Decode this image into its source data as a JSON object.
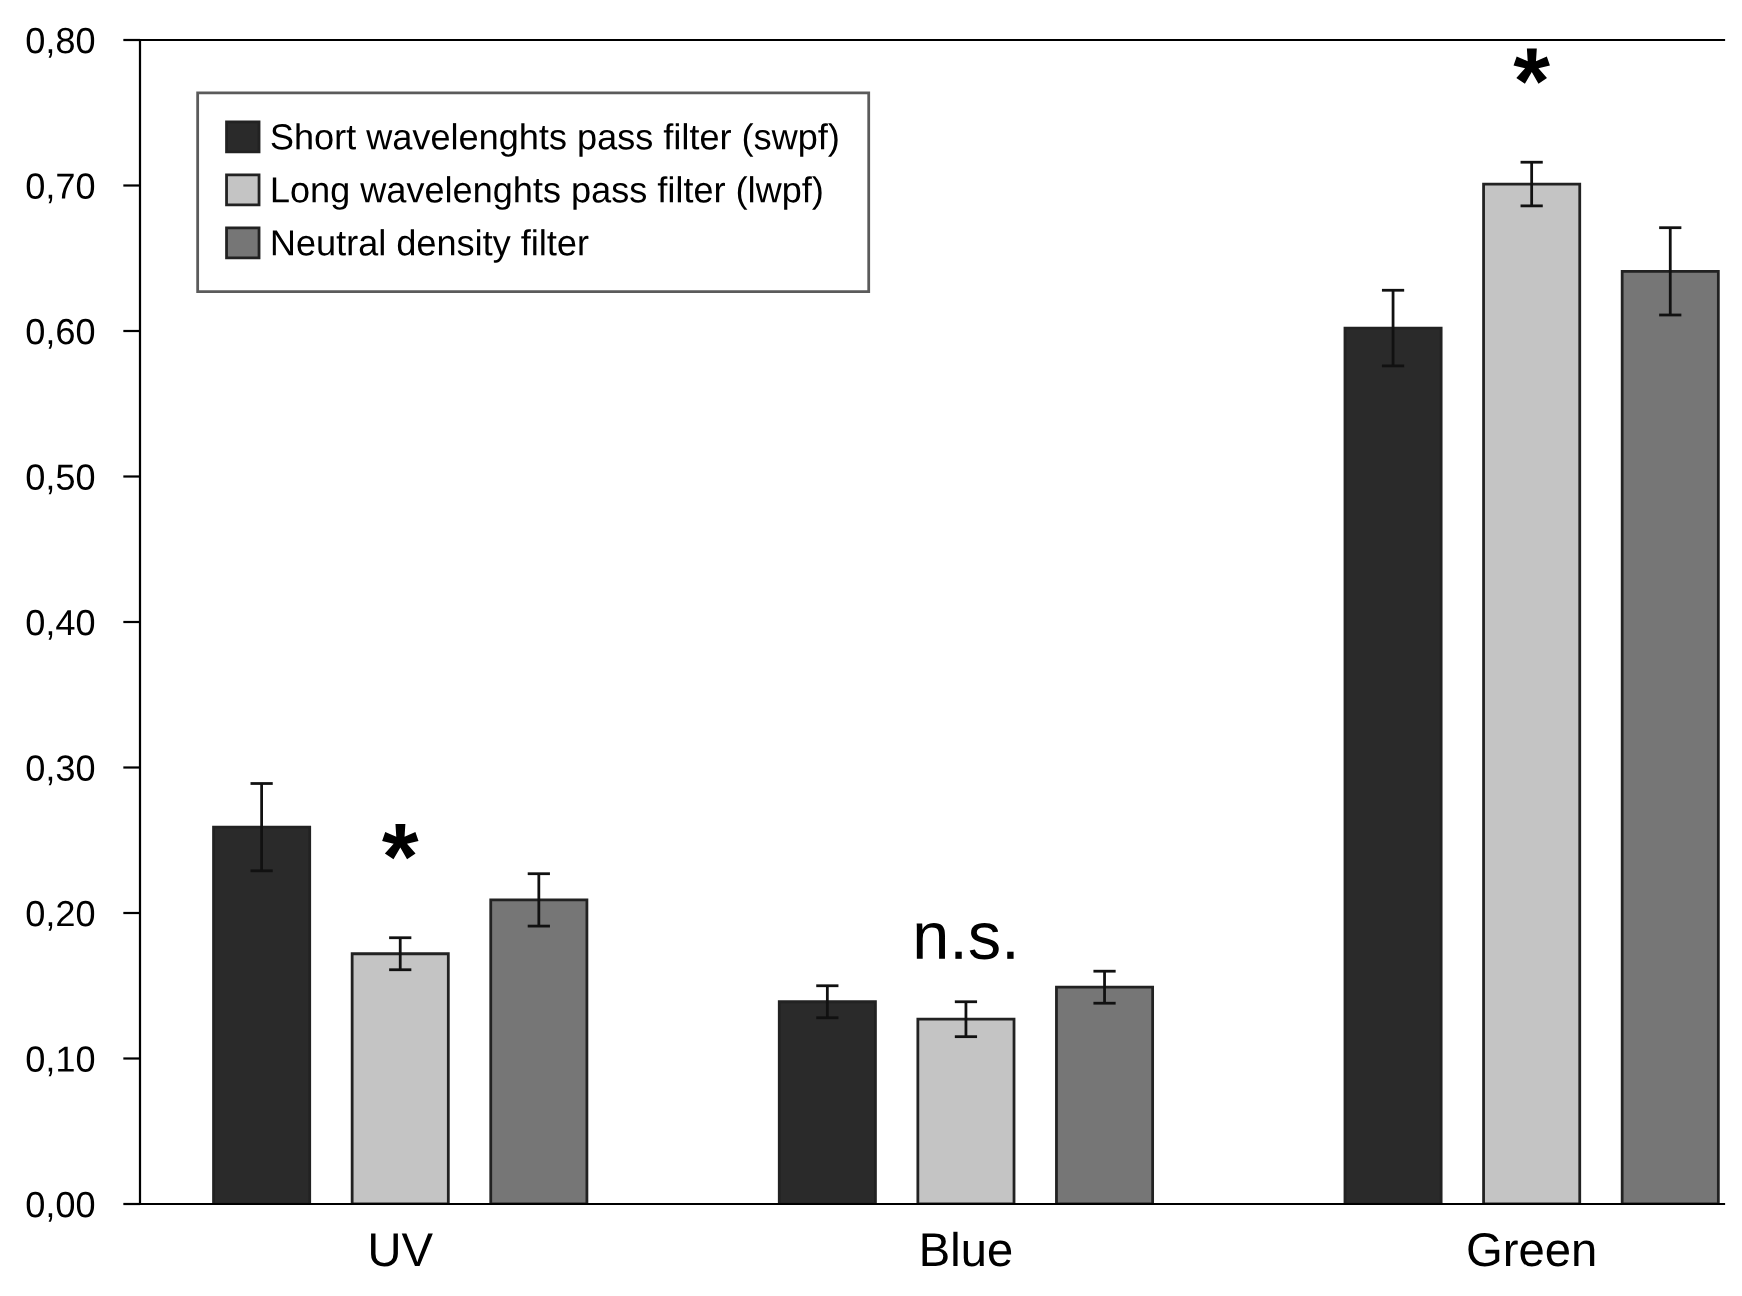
{
  "chart_data": {
    "type": "bar",
    "categories": [
      "UV",
      "Blue",
      "Green"
    ],
    "series": [
      {
        "name": "Short wavelenghts pass filter (swpf)",
        "color": "#2a2a2a",
        "values": [
          0.259,
          0.139,
          0.602
        ],
        "errors": [
          0.03,
          0.011,
          0.026
        ]
      },
      {
        "name": "Long wavelenghts pass filter (lwpf)",
        "color": "#c4c4c4",
        "values": [
          0.172,
          0.127,
          0.701
        ],
        "errors": [
          0.011,
          0.012,
          0.015
        ]
      },
      {
        "name": "Neutral density filter",
        "color": "#767676",
        "values": [
          0.209,
          0.149,
          0.641
        ],
        "errors": [
          0.018,
          0.011,
          0.03
        ]
      }
    ],
    "ylim": [
      0,
      0.8
    ],
    "yticks": [
      {
        "value": 0,
        "label": "0,00"
      },
      {
        "value": 0.1,
        "label": "0,10"
      },
      {
        "value": 0.2,
        "label": "0,20"
      },
      {
        "value": 0.3,
        "label": "0,30"
      },
      {
        "value": 0.4,
        "label": "0,40"
      },
      {
        "value": 0.5,
        "label": "0,50"
      },
      {
        "value": 0.6,
        "label": "0,60"
      },
      {
        "value": 0.7,
        "label": "0,70"
      },
      {
        "value": 0.8,
        "label": "0,80"
      }
    ],
    "annotations": [
      "*",
      "n.s.",
      "*"
    ],
    "legend": "top left",
    "grid": false
  }
}
